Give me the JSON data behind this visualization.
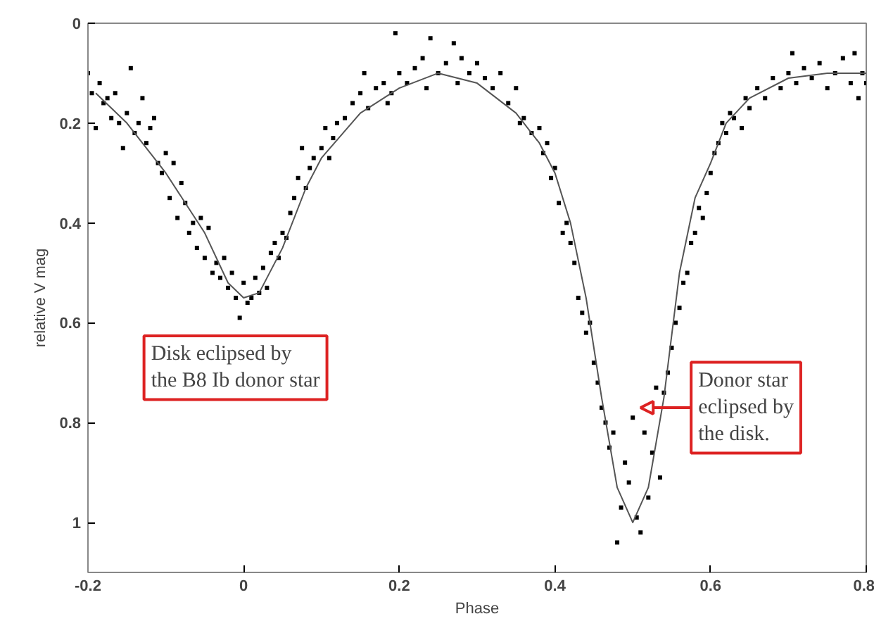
{
  "chart_data": {
    "type": "scatter",
    "xlabel": "Phase",
    "ylabel": "relative V mag",
    "xlim": [
      -0.2,
      0.8
    ],
    "ylim": [
      1.1,
      0
    ],
    "xticks": [
      -0.2,
      0,
      0.2,
      0.4,
      0.6,
      0.8
    ],
    "yticks": [
      0,
      0.2,
      0.4,
      0.6,
      0.8,
      1
    ],
    "grid": false,
    "series": [
      {
        "color": "#000000",
        "marker": "square",
        "x": [
          -0.2,
          -0.195,
          -0.19,
          -0.185,
          -0.18,
          -0.175,
          -0.17,
          -0.165,
          -0.16,
          -0.155,
          -0.15,
          -0.145,
          -0.14,
          -0.135,
          -0.13,
          -0.125,
          -0.12,
          -0.115,
          -0.11,
          -0.105,
          -0.1,
          -0.095,
          -0.09,
          -0.085,
          -0.08,
          -0.075,
          -0.07,
          -0.065,
          -0.06,
          -0.055,
          -0.05,
          -0.045,
          -0.04,
          -0.035,
          -0.03,
          -0.025,
          -0.02,
          -0.015,
          -0.01,
          -0.005,
          0,
          0.005,
          0.01,
          0.015,
          0.02,
          0.025,
          0.03,
          0.035,
          0.04,
          0.045,
          0.05,
          0.055,
          0.06,
          0.065,
          0.07,
          0.075,
          0.08,
          0.085,
          0.09,
          0.1,
          0.105,
          0.11,
          0.115,
          0.12,
          0.13,
          0.14,
          0.15,
          0.155,
          0.16,
          0.17,
          0.18,
          0.185,
          0.19,
          0.195,
          0.2,
          0.21,
          0.22,
          0.23,
          0.235,
          0.24,
          0.25,
          0.26,
          0.27,
          0.275,
          0.28,
          0.29,
          0.3,
          0.31,
          0.32,
          0.33,
          0.34,
          0.35,
          0.355,
          0.36,
          0.37,
          0.38,
          0.385,
          0.39,
          0.395,
          0.4,
          0.405,
          0.41,
          0.415,
          0.42,
          0.425,
          0.43,
          0.435,
          0.44,
          0.445,
          0.45,
          0.455,
          0.46,
          0.465,
          0.47,
          0.475,
          0.48,
          0.485,
          0.49,
          0.495,
          0.5,
          0.505,
          0.51,
          0.515,
          0.52,
          0.525,
          0.53,
          0.535,
          0.54,
          0.545,
          0.55,
          0.555,
          0.56,
          0.565,
          0.57,
          0.575,
          0.58,
          0.585,
          0.59,
          0.595,
          0.6,
          0.605,
          0.61,
          0.615,
          0.62,
          0.625,
          0.63,
          0.64,
          0.645,
          0.65,
          0.66,
          0.67,
          0.68,
          0.69,
          0.7,
          0.705,
          0.71,
          0.72,
          0.73,
          0.74,
          0.75,
          0.76,
          0.77,
          0.78,
          0.785,
          0.79,
          0.795,
          0.8
        ],
        "values": [
          0.1,
          0.14,
          0.21,
          0.12,
          0.16,
          0.15,
          0.19,
          0.14,
          0.2,
          0.25,
          0.18,
          0.09,
          0.22,
          0.2,
          0.15,
          0.24,
          0.21,
          0.19,
          0.28,
          0.3,
          0.26,
          0.35,
          0.28,
          0.39,
          0.32,
          0.36,
          0.42,
          0.4,
          0.45,
          0.39,
          0.47,
          0.41,
          0.5,
          0.48,
          0.51,
          0.47,
          0.53,
          0.5,
          0.55,
          0.59,
          0.52,
          0.56,
          0.55,
          0.51,
          0.54,
          0.49,
          0.53,
          0.46,
          0.44,
          0.47,
          0.42,
          0.43,
          0.38,
          0.35,
          0.31,
          0.25,
          0.33,
          0.29,
          0.27,
          0.25,
          0.21,
          0.27,
          0.23,
          0.2,
          0.19,
          0.16,
          0.14,
          0.1,
          0.17,
          0.13,
          0.12,
          0.16,
          0.14,
          0.02,
          0.1,
          0.12,
          0.09,
          0.07,
          0.13,
          0.03,
          0.1,
          0.08,
          0.04,
          0.12,
          0.07,
          0.1,
          0.08,
          0.11,
          0.13,
          0.1,
          0.16,
          0.13,
          0.2,
          0.19,
          0.22,
          0.21,
          0.26,
          0.24,
          0.31,
          0.29,
          0.36,
          0.42,
          0.4,
          0.44,
          0.48,
          0.55,
          0.58,
          0.62,
          0.6,
          0.68,
          0.72,
          0.77,
          0.8,
          0.85,
          0.82,
          1.04,
          0.97,
          0.88,
          0.92,
          0.79,
          0.99,
          1.02,
          0.82,
          0.95,
          0.86,
          0.73,
          0.91,
          0.74,
          0.7,
          0.65,
          0.6,
          0.57,
          0.52,
          0.5,
          0.44,
          0.42,
          0.37,
          0.39,
          0.34,
          0.3,
          0.26,
          0.24,
          0.2,
          0.22,
          0.18,
          0.19,
          0.21,
          0.15,
          0.17,
          0.13,
          0.15,
          0.11,
          0.13,
          0.1,
          0.06,
          0.12,
          0.09,
          0.11,
          0.08,
          0.13,
          0.1,
          0.07,
          0.12,
          0.06,
          0.15,
          0.1,
          0.12
        ]
      },
      {
        "type": "line",
        "color": "#555555",
        "x": [
          -0.19,
          -0.15,
          -0.1,
          -0.05,
          -0.02,
          0,
          0.02,
          0.05,
          0.08,
          0.1,
          0.15,
          0.2,
          0.25,
          0.3,
          0.35,
          0.38,
          0.4,
          0.42,
          0.44,
          0.46,
          0.48,
          0.5,
          0.52,
          0.54,
          0.56,
          0.58,
          0.6,
          0.62,
          0.65,
          0.7,
          0.75,
          0.8
        ],
        "values": [
          0.14,
          0.2,
          0.3,
          0.42,
          0.52,
          0.55,
          0.54,
          0.45,
          0.33,
          0.27,
          0.18,
          0.13,
          0.1,
          0.12,
          0.18,
          0.24,
          0.3,
          0.4,
          0.55,
          0.75,
          0.93,
          1.0,
          0.93,
          0.75,
          0.5,
          0.35,
          0.28,
          0.2,
          0.15,
          0.11,
          0.1,
          0.1
        ]
      }
    ],
    "annotations": [
      "Disk eclipsed by\nthe B8 Ib donor star",
      "Donor star\neclipsed by\nthe disk."
    ]
  }
}
